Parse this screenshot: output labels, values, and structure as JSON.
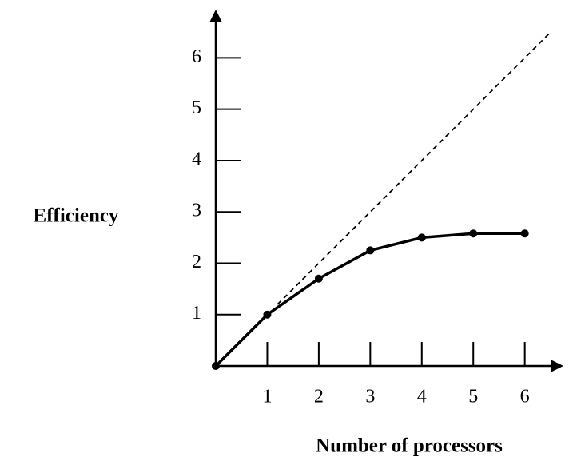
{
  "chart_data": {
    "type": "line",
    "xlabel": "Number of processors",
    "ylabel": "Efficiency",
    "xlim": [
      0,
      6.75
    ],
    "ylim": [
      0,
      6.94
    ],
    "xticks": [
      1,
      2,
      3,
      4,
      5,
      6
    ],
    "yticks": [
      1,
      2,
      3,
      4,
      5,
      6
    ],
    "series": [
      {
        "color": "#000000",
        "dashed": false,
        "markers": true,
        "x": [
          0,
          1,
          2,
          3,
          4,
          5,
          6
        ],
        "values": [
          0,
          1,
          1.7,
          2.25,
          2.5,
          2.58,
          2.58
        ]
      },
      {
        "color": "#000000",
        "dashed": true,
        "markers": false,
        "x": [
          1.2,
          6.5
        ],
        "values": [
          1.2,
          6.5
        ]
      }
    ]
  }
}
